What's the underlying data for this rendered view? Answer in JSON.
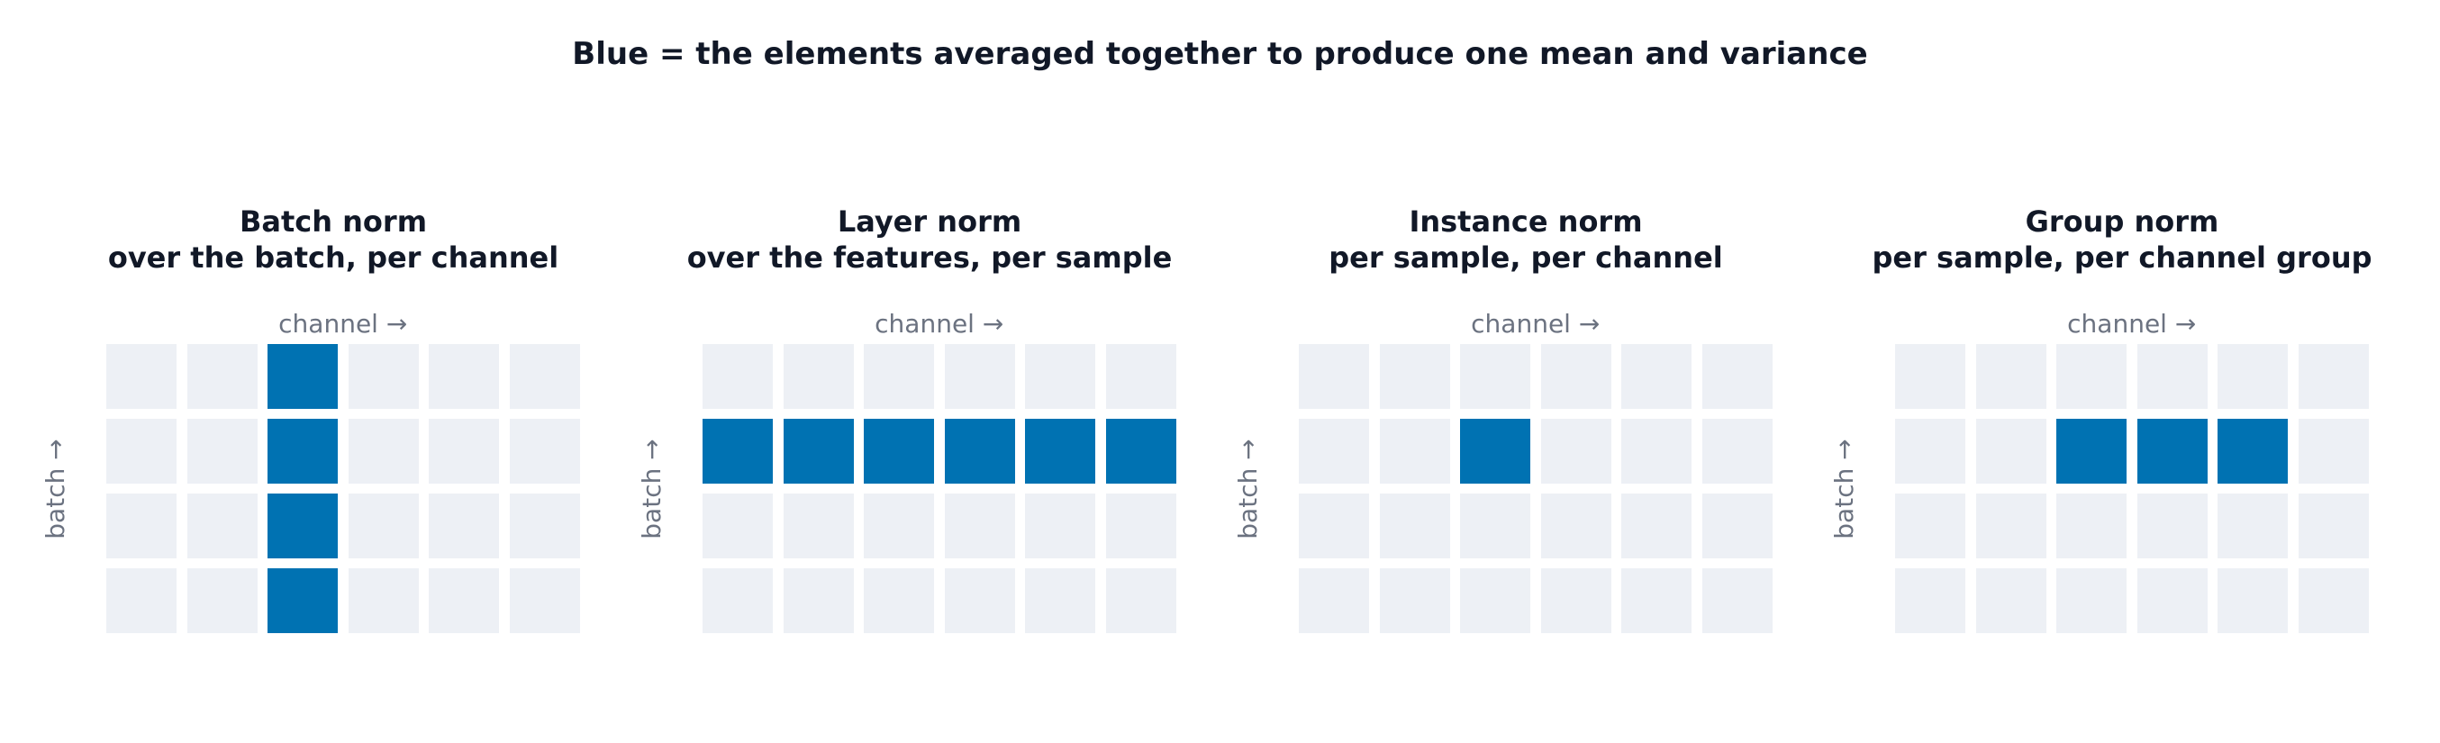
{
  "title": "Blue = the elements averaged together to produce one mean and variance",
  "colors": {
    "active": "#0072b2",
    "inactive": "#edf0f5",
    "title_text": "#111827",
    "axis_text": "#6b7280"
  },
  "grid": {
    "rows": 4,
    "cols": 6
  },
  "panels": [
    {
      "title": "Batch norm",
      "subtitle": "over the batch, per channel",
      "x_label": "channel →",
      "y_label": "batch →",
      "highlighted": {
        "rows": [
          0,
          1,
          2,
          3
        ],
        "cols": [
          2
        ]
      }
    },
    {
      "title": "Layer norm",
      "subtitle": "over the features, per sample",
      "x_label": "channel →",
      "y_label": "batch →",
      "highlighted": {
        "rows": [
          1
        ],
        "cols": [
          0,
          1,
          2,
          3,
          4,
          5
        ]
      }
    },
    {
      "title": "Instance norm",
      "subtitle": "per sample, per channel",
      "x_label": "channel →",
      "y_label": "batch →",
      "highlighted": {
        "rows": [
          1
        ],
        "cols": [
          2
        ]
      }
    },
    {
      "title": "Group norm",
      "subtitle": "per sample, per channel group",
      "x_label": "channel →",
      "y_label": "batch →",
      "highlighted": {
        "rows": [
          1
        ],
        "cols": [
          2,
          3,
          4
        ]
      }
    }
  ]
}
